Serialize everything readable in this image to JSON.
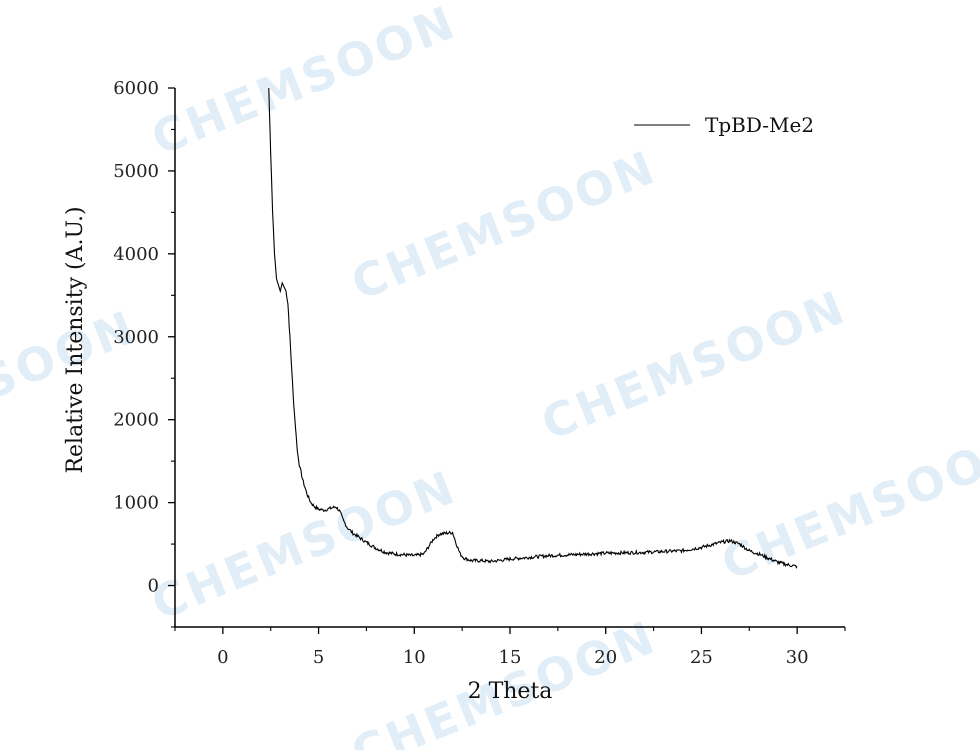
{
  "watermark": "CHEMSOON",
  "chart_data": {
    "type": "line",
    "title": "",
    "xlabel": "2 Theta",
    "ylabel": "Relative Intensity (A.U.)",
    "xlim": [
      -2.5,
      32.5
    ],
    "ylim": [
      -500,
      6000
    ],
    "xticks": [
      0,
      5,
      10,
      15,
      20,
      25,
      30
    ],
    "yticks": [
      0,
      1000,
      2000,
      3000,
      4000,
      5000,
      6000
    ],
    "legend": "top-right",
    "line_color": "#000000",
    "series": [
      {
        "name": "TpBD-Me2",
        "x": [
          2.4,
          2.5,
          2.6,
          2.7,
          2.8,
          3.0,
          3.1,
          3.2,
          3.3,
          3.4,
          3.5,
          3.6,
          3.7,
          3.8,
          3.9,
          4.0,
          4.2,
          4.4,
          4.6,
          4.8,
          5.0,
          5.3,
          5.6,
          5.9,
          6.1,
          6.3,
          6.5,
          6.8,
          7.0,
          7.5,
          8.0,
          8.5,
          9.0,
          9.5,
          10.0,
          10.5,
          11.0,
          11.3,
          11.6,
          12.0,
          12.2,
          12.4,
          12.6,
          13.0,
          13.5,
          14.0,
          15.0,
          16.0,
          17.0,
          18.0,
          19.0,
          20.0,
          21.0,
          22.0,
          23.0,
          24.0,
          25.0,
          25.5,
          26.0,
          26.5,
          27.0,
          27.5,
          28.0,
          28.5,
          29.0,
          29.5,
          30.0
        ],
        "y": [
          6000,
          5200,
          4500,
          4000,
          3700,
          3550,
          3650,
          3600,
          3550,
          3400,
          3000,
          2600,
          2200,
          1900,
          1600,
          1450,
          1250,
          1100,
          1000,
          950,
          920,
          910,
          930,
          950,
          900,
          780,
          700,
          630,
          600,
          520,
          450,
          400,
          380,
          370,
          360,
          380,
          560,
          620,
          630,
          640,
          500,
          380,
          330,
          300,
          300,
          290,
          320,
          340,
          360,
          370,
          380,
          390,
          395,
          400,
          410,
          420,
          460,
          490,
          520,
          540,
          500,
          420,
          380,
          330,
          280,
          250,
          230
        ]
      }
    ]
  }
}
